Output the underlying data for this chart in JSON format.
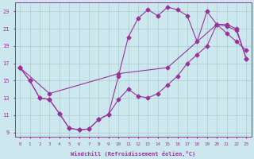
{
  "xlabel": "Windchill (Refroidissement éolien,°C)",
  "bg_color": "#cce8ee",
  "line_color": "#993399",
  "grid_color": "#aacccc",
  "xlim": [
    -0.5,
    23.5
  ],
  "ylim": [
    8.5,
    24.0
  ],
  "yticks": [
    9,
    11,
    13,
    15,
    17,
    19,
    21,
    23
  ],
  "xticks": [
    0,
    1,
    2,
    3,
    4,
    5,
    6,
    7,
    8,
    9,
    10,
    11,
    12,
    13,
    14,
    15,
    16,
    17,
    18,
    19,
    20,
    21,
    22,
    23
  ],
  "line1_x": [
    0,
    1,
    2,
    3,
    4,
    5,
    6,
    7,
    8,
    9,
    10,
    11,
    12,
    13,
    14,
    15,
    16,
    17,
    18,
    19,
    20,
    21,
    22,
    23
  ],
  "line1_y": [
    16.5,
    15.0,
    13.0,
    12.8,
    11.2,
    9.5,
    9.3,
    9.4,
    10.5,
    11.1,
    12.8,
    14.0,
    13.2,
    13.0,
    13.5,
    14.5,
    15.5,
    17.0,
    18.0,
    19.0,
    21.5,
    21.5,
    21.0,
    17.5
  ],
  "line2_x": [
    0,
    1,
    2,
    3,
    4,
    5,
    6,
    7,
    8,
    9,
    10,
    11,
    12,
    13,
    14,
    15,
    16,
    17,
    18,
    19,
    20,
    21,
    22,
    23
  ],
  "line2_y": [
    16.5,
    15.0,
    13.0,
    12.8,
    11.2,
    9.5,
    9.3,
    9.4,
    10.5,
    11.1,
    15.5,
    20.0,
    22.2,
    23.2,
    22.5,
    23.5,
    23.2,
    22.5,
    19.5,
    23.0,
    21.5,
    20.5,
    19.5,
    18.5
  ],
  "line3_x": [
    0,
    3,
    10,
    15,
    20,
    21,
    22,
    23
  ],
  "line3_y": [
    16.5,
    13.5,
    15.8,
    16.5,
    21.5,
    21.3,
    20.8,
    17.5
  ]
}
